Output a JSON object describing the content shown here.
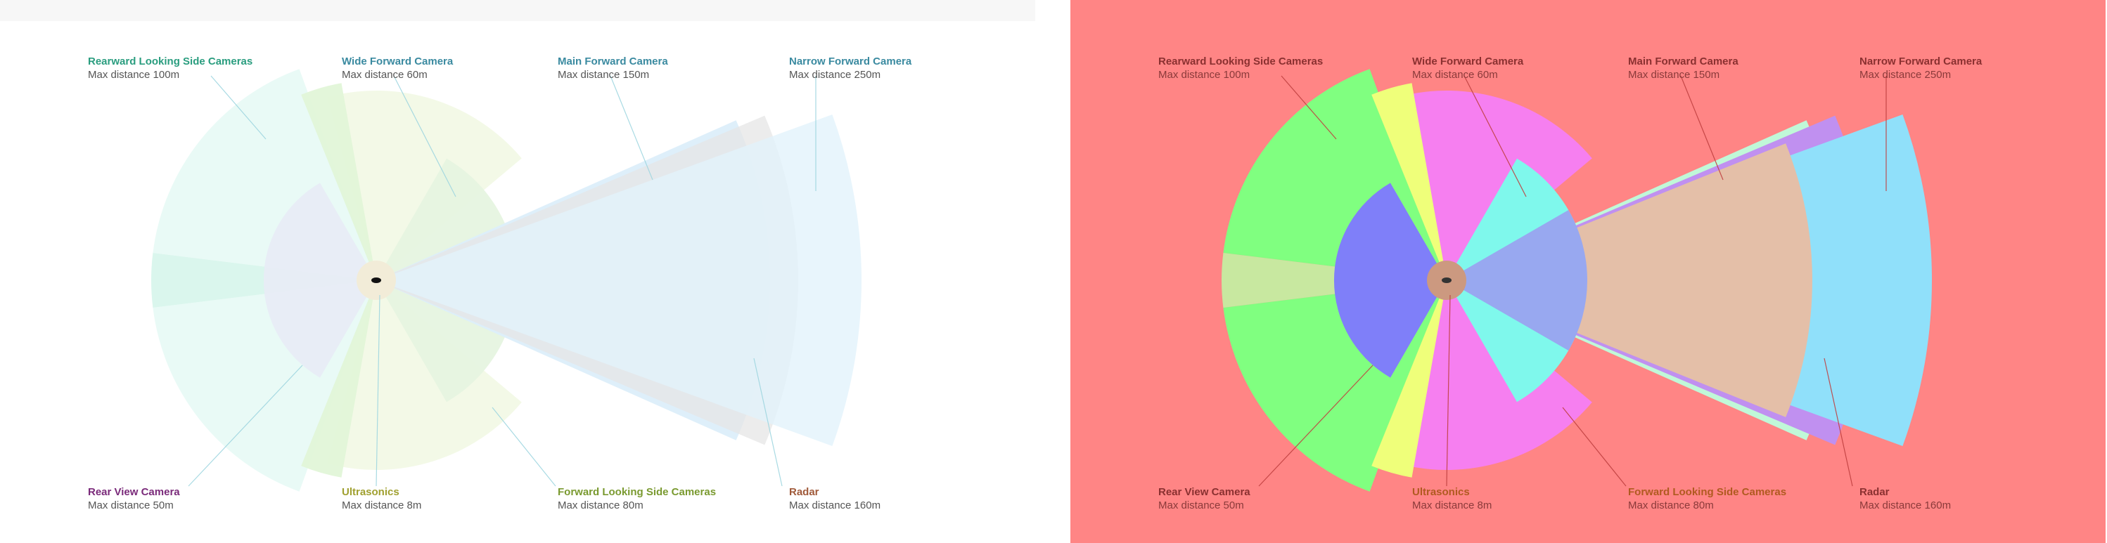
{
  "sensors": [
    {
      "key": "rearward",
      "title": "Rearward Looking Side Cameras",
      "subtitle": "Max distance 100m",
      "color": "#2a9d7f"
    },
    {
      "key": "wide",
      "title": "Wide Forward Camera",
      "subtitle": "Max distance 60m",
      "color": "#3a8aa0"
    },
    {
      "key": "main",
      "title": "Main Forward Camera",
      "subtitle": "Max distance 150m",
      "color": "#3a8aa0"
    },
    {
      "key": "narrow",
      "title": "Narrow Forward Camera",
      "subtitle": "Max distance 250m",
      "color": "#3a8aa0"
    },
    {
      "key": "rearview",
      "title": "Rear View Camera",
      "subtitle": "Max distance 50m",
      "color": "#7a2a7a"
    },
    {
      "key": "ultra",
      "title": "Ultrasonics",
      "subtitle": "Max distance 8m",
      "color": "#a0a030"
    },
    {
      "key": "fwdside",
      "title": "Forward Looking Side Cameras",
      "subtitle": "Max distance 80m",
      "color": "#7a9a30"
    },
    {
      "key": "radar",
      "title": "Radar",
      "subtitle": "Max distance 160m",
      "color": "#a05a3a"
    }
  ],
  "colors": {
    "left": {
      "rearward": "#e8faf5",
      "wide": "#f2f9e6",
      "main": "#dceefa",
      "narrow": "#e2f2fb",
      "rearview": "#e8ecf5",
      "ultra": "#f5eed8",
      "fwdside": "#e6f4e0",
      "radar": "#e6e6e6",
      "car": "#111111"
    },
    "right": {
      "rearward": "#80ff80",
      "wide": "#f67ff0",
      "main": "#c0f8d8",
      "narrow": "#90e0fa",
      "rearview": "#7f7ff9",
      "ultra": "#efff7a",
      "fwdside": "#7ff8ec",
      "radar": "#c090f0",
      "mainInner": "#e4bfa8",
      "car": "#cc9980"
    }
  }
}
